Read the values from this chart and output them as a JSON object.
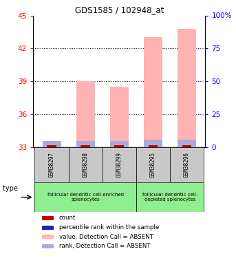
{
  "title": "GDS1585 / 102948_at",
  "samples": [
    "GSM38297",
    "GSM38298",
    "GSM38299",
    "GSM38295",
    "GSM38296"
  ],
  "ylim_left": [
    33,
    45
  ],
  "ylim_right": [
    0,
    100
  ],
  "yticks_left": [
    33,
    36,
    39,
    42,
    45
  ],
  "yticks_right": [
    0,
    25,
    50,
    75,
    100
  ],
  "ytick_labels_right": [
    "0",
    "25",
    "50",
    "75",
    "100%"
  ],
  "value_bars": [
    33.35,
    39.0,
    38.5,
    43.0,
    43.8
  ],
  "rank_bar_tops": [
    33.55,
    33.55,
    33.55,
    33.7,
    33.7
  ],
  "red_bar_tops": [
    33.18,
    33.18,
    33.18,
    33.18,
    33.18
  ],
  "bar_width": 0.55,
  "pink_color": "#FFB3B3",
  "lightblue_color": "#AAAADD",
  "red_color": "#CC0000",
  "blue_color": "#2222AA",
  "group1_indices": [
    0,
    1,
    2
  ],
  "group2_indices": [
    3,
    4
  ],
  "group1_label": "follicular dendritic cell-enriched\nsplenocytes",
  "group2_label": "follicular dendritic cell-\ndepleted splenocytes",
  "cell_type_label": "cell type",
  "legend_items": [
    {
      "color": "#CC0000",
      "label": "count"
    },
    {
      "color": "#2222AA",
      "label": "percentile rank within the sample"
    },
    {
      "color": "#FFB3B3",
      "label": "value, Detection Call = ABSENT"
    },
    {
      "color": "#AAAADD",
      "label": "rank, Detection Call = ABSENT"
    }
  ],
  "grid_yticks": [
    36,
    39,
    42
  ],
  "sample_box_color": "#C8C8C8",
  "group_box_color": "#90EE90"
}
